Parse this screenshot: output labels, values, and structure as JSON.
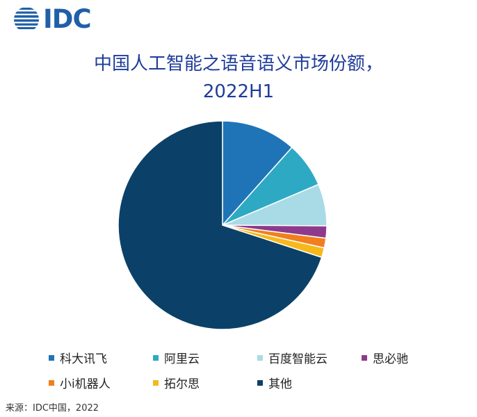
{
  "logo": {
    "text": "IDC"
  },
  "title_line1": "中国人工智能之语音语义市场份额，",
  "title_line2": "2022H1",
  "source": "来源：IDC中国，2022",
  "chart_data": {
    "type": "pie",
    "title": "中国人工智能之语音语义市场份额， 2022H1",
    "unit": "%",
    "slices": [
      {
        "label": "科大讯飞",
        "value": 11.6,
        "color": "#1f74b8"
      },
      {
        "label": "阿里云",
        "value": 7.0,
        "color": "#2ea9c4"
      },
      {
        "label": "百度智能云",
        "value": 6.5,
        "color": "#a8dbe6"
      },
      {
        "label": "思必驰",
        "value": 1.9,
        "color": "#8e3a8c"
      },
      {
        "label": "小i机器人",
        "value": 1.5,
        "color": "#f07f1e"
      },
      {
        "label": "拓尔思",
        "value": 1.5,
        "color": "#f6b81a"
      },
      {
        "label": "其他",
        "value": 70.0,
        "color": "#0b4168"
      }
    ],
    "legend_position": "bottom"
  }
}
